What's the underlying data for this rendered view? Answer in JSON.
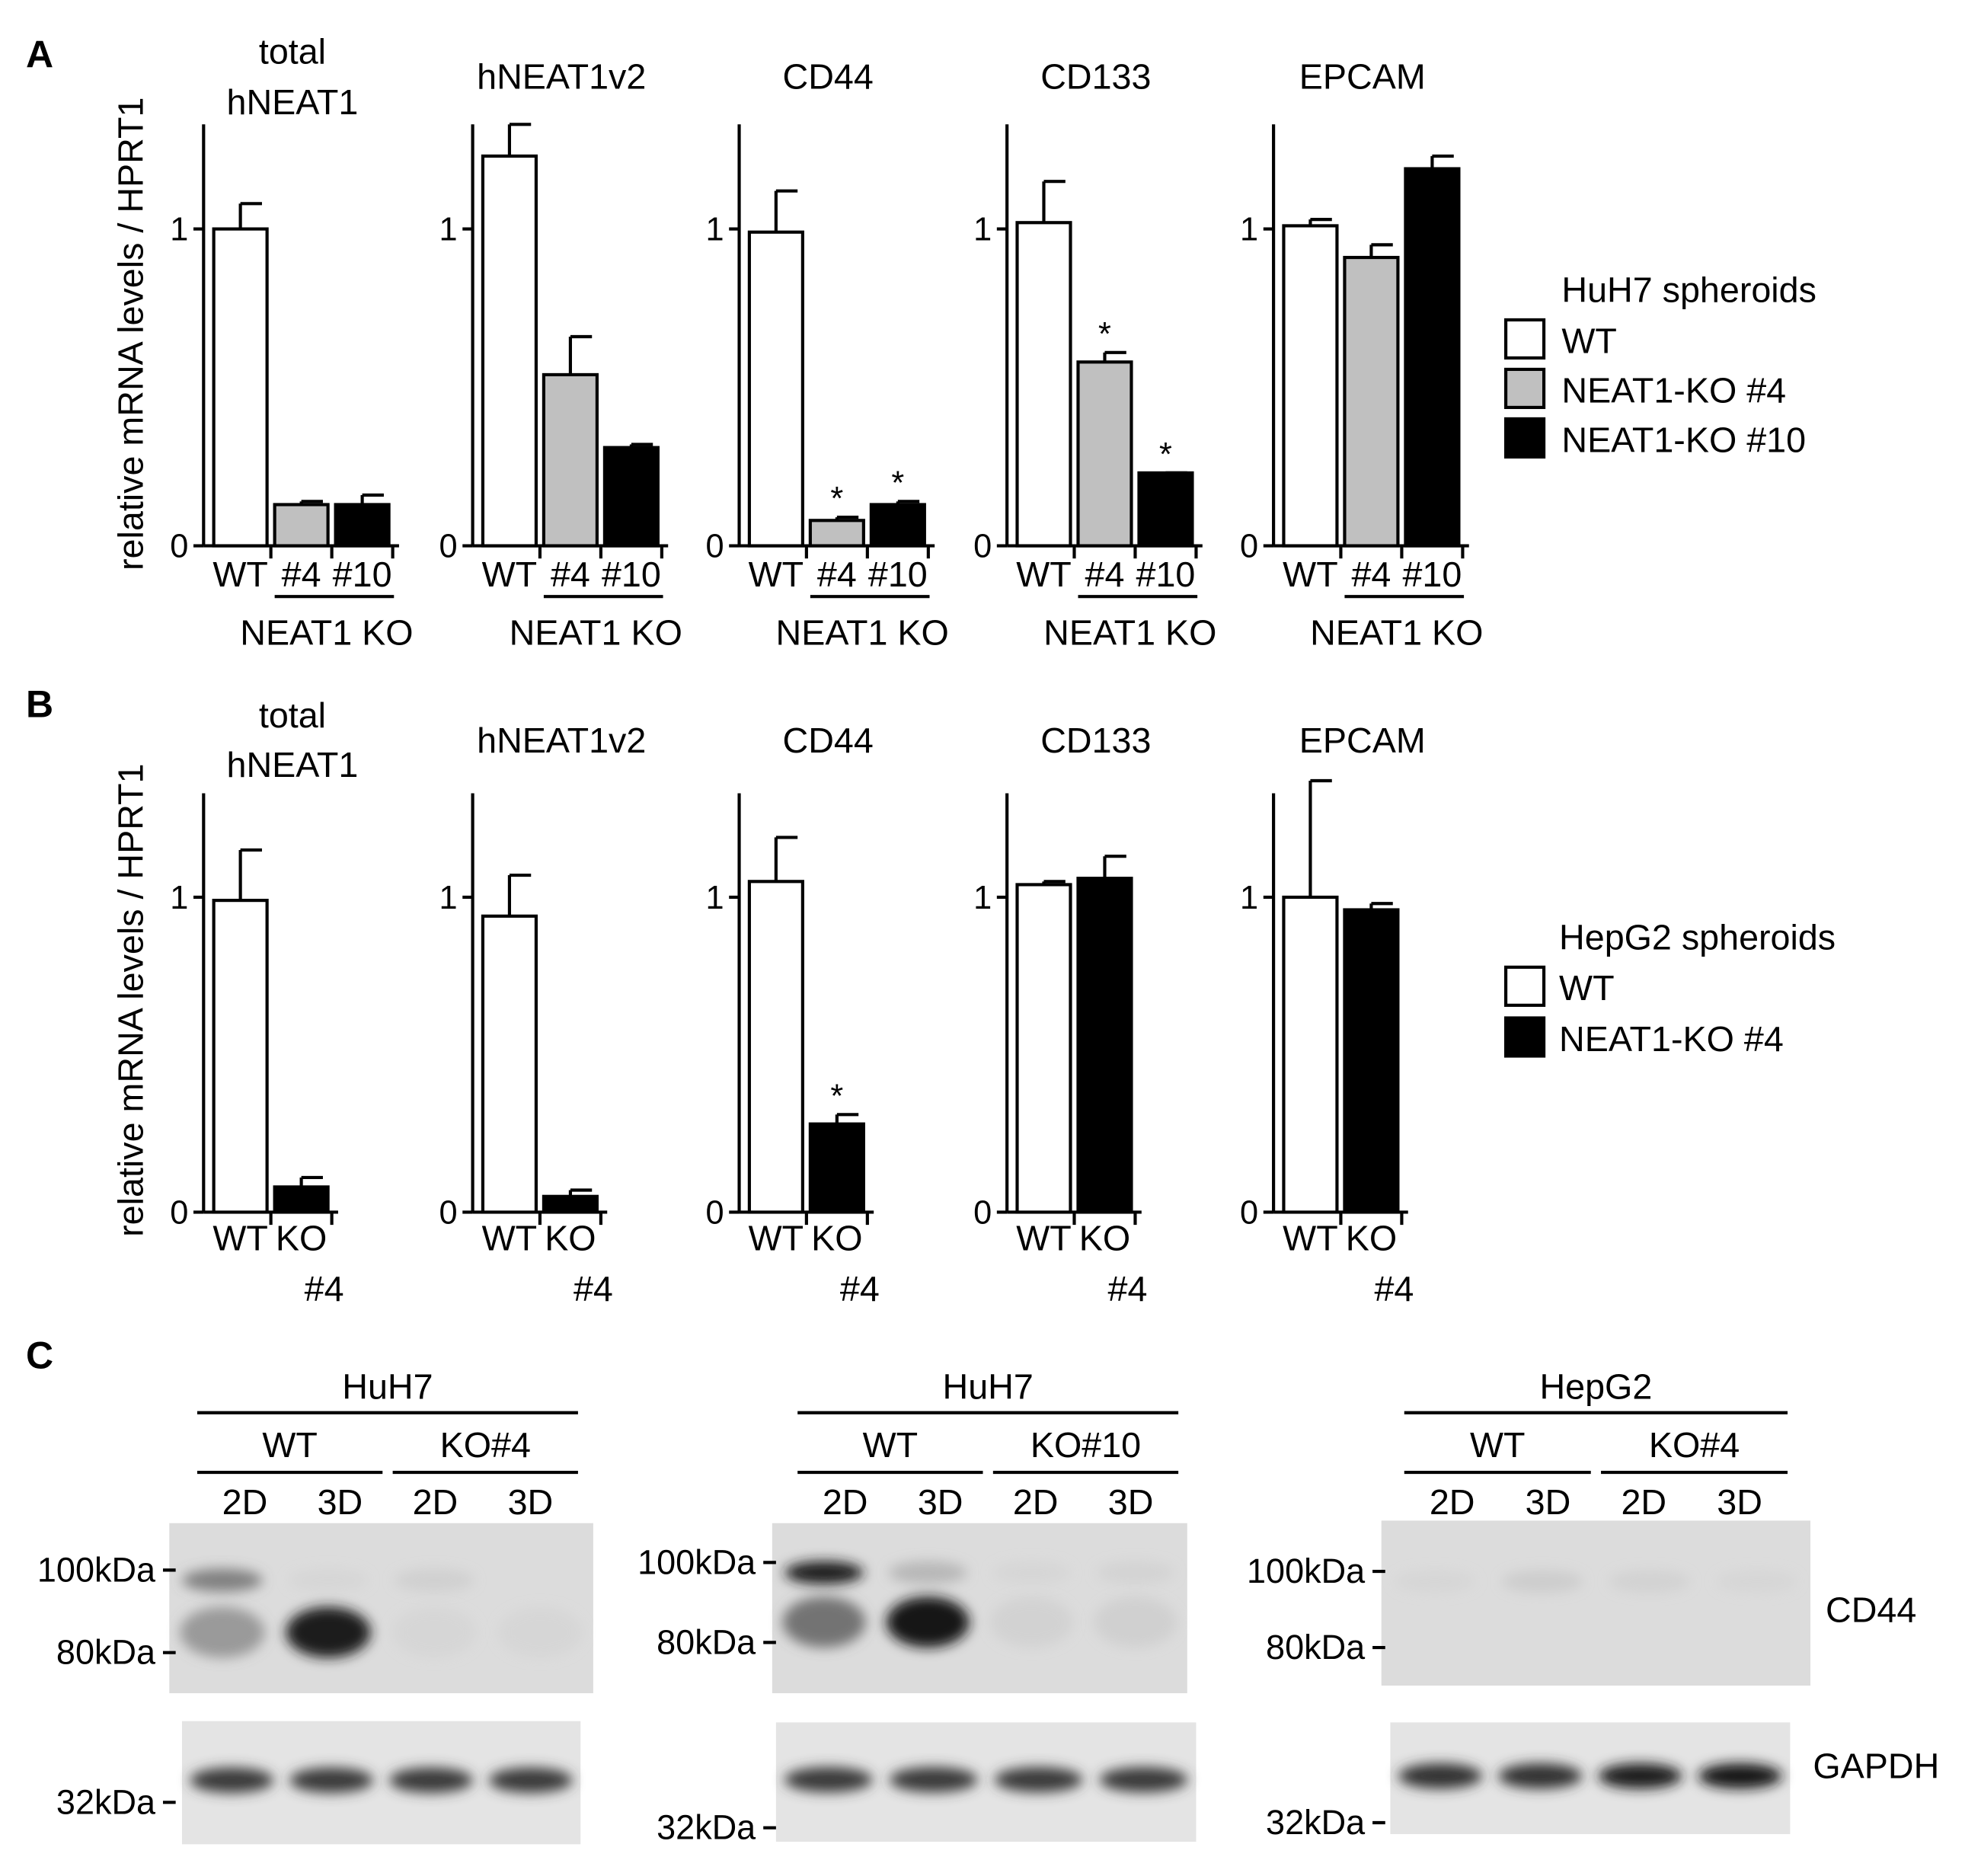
{
  "figure": {
    "panels": {
      "a": "A",
      "b": "B",
      "c": "C"
    },
    "y_axis_label": "relative mRNA levels / HPRT1",
    "group_label": "NEAT1 KO",
    "legend_a": {
      "title": "HuH7 spheroids",
      "items": [
        {
          "label": "WT",
          "color": "#ffffff"
        },
        {
          "label": "NEAT1-KO #4",
          "color": "#c0c0c0"
        },
        {
          "label": "NEAT1-KO #10",
          "color": "#000000"
        }
      ]
    },
    "legend_b": {
      "title": "HepG2 spheroids",
      "items": [
        {
          "label": "WT",
          "color": "#ffffff"
        },
        {
          "label": "NEAT1-KO #4",
          "color": "#000000"
        }
      ]
    }
  },
  "chart_data": [
    {
      "panel": "A",
      "type": "bar",
      "title": "total hNEAT1",
      "ylabel": "relative mRNA levels / HPRT1",
      "categories": [
        "WT",
        "#4",
        "#10"
      ],
      "group_label": "NEAT1 KO",
      "values": [
        1.0,
        0.13,
        0.13
      ],
      "errors": [
        0.08,
        0.01,
        0.03
      ],
      "significant": [
        false,
        false,
        false
      ],
      "colors": [
        "#ffffff",
        "#c0c0c0",
        "#000000"
      ],
      "ylim": [
        0,
        1.33
      ],
      "yticks": [
        0,
        1
      ]
    },
    {
      "panel": "A",
      "type": "bar",
      "title": "hNEAT1v2",
      "ylabel": "relative mRNA levels / HPRT1",
      "categories": [
        "WT",
        "#4",
        "#10"
      ],
      "group_label": "NEAT1 KO",
      "values": [
        1.23,
        0.54,
        0.31
      ],
      "errors": [
        0.1,
        0.12,
        0.01
      ],
      "significant": [
        false,
        false,
        false
      ],
      "colors": [
        "#ffffff",
        "#c0c0c0",
        "#000000"
      ],
      "ylim": [
        0,
        1.33
      ],
      "yticks": [
        0,
        1
      ]
    },
    {
      "panel": "A",
      "type": "bar",
      "title": "CD44",
      "ylabel": "relative mRNA levels / HPRT1",
      "categories": [
        "WT",
        "#4",
        "#10"
      ],
      "group_label": "NEAT1 KO",
      "values": [
        0.99,
        0.08,
        0.13
      ],
      "errors": [
        0.13,
        0.01,
        0.01
      ],
      "significant": [
        false,
        true,
        true
      ],
      "colors": [
        "#ffffff",
        "#c0c0c0",
        "#000000"
      ],
      "ylim": [
        0,
        1.33
      ],
      "yticks": [
        0,
        1
      ]
    },
    {
      "panel": "A",
      "type": "bar",
      "title": "CD133",
      "ylabel": "relative mRNA levels / HPRT1",
      "categories": [
        "WT",
        "#4",
        "#10"
      ],
      "group_label": "NEAT1 KO",
      "values": [
        1.02,
        0.58,
        0.23
      ],
      "errors": [
        0.13,
        0.03,
        0.0
      ],
      "significant": [
        false,
        true,
        true
      ],
      "colors": [
        "#ffffff",
        "#c0c0c0",
        "#000000"
      ],
      "ylim": [
        0,
        1.33
      ],
      "yticks": [
        0,
        1
      ]
    },
    {
      "panel": "A",
      "type": "bar",
      "title": "EPCAM",
      "ylabel": "relative mRNA levels / HPRT1",
      "categories": [
        "WT",
        "#4",
        "#10"
      ],
      "group_label": "NEAT1 KO",
      "values": [
        1.01,
        0.91,
        1.19
      ],
      "errors": [
        0.02,
        0.04,
        0.04
      ],
      "significant": [
        false,
        false,
        false
      ],
      "colors": [
        "#ffffff",
        "#c0c0c0",
        "#000000"
      ],
      "ylim": [
        0,
        1.33
      ],
      "yticks": [
        0,
        1
      ]
    },
    {
      "panel": "B",
      "type": "bar",
      "title": "total hNEAT1",
      "ylabel": "relative mRNA levels / HPRT1",
      "categories": [
        "WT",
        "KO #4"
      ],
      "values": [
        0.99,
        0.08
      ],
      "errors": [
        0.16,
        0.03
      ],
      "significant": [
        false,
        false
      ],
      "colors": [
        "#ffffff",
        "#000000"
      ],
      "ylim": [
        0,
        1.33
      ],
      "yticks": [
        0,
        1
      ]
    },
    {
      "panel": "B",
      "type": "bar",
      "title": "hNEAT1v2",
      "ylabel": "relative mRNA levels / HPRT1",
      "categories": [
        "WT",
        "KO #4"
      ],
      "values": [
        0.94,
        0.05
      ],
      "errors": [
        0.13,
        0.02
      ],
      "significant": [
        false,
        false
      ],
      "colors": [
        "#ffffff",
        "#000000"
      ],
      "ylim": [
        0,
        1.33
      ],
      "yticks": [
        0,
        1
      ]
    },
    {
      "panel": "B",
      "type": "bar",
      "title": "CD44",
      "ylabel": "relative mRNA levels / HPRT1",
      "categories": [
        "WT",
        "KO #4"
      ],
      "values": [
        1.05,
        0.28
      ],
      "errors": [
        0.14,
        0.03
      ],
      "significant": [
        false,
        true
      ],
      "colors": [
        "#ffffff",
        "#000000"
      ],
      "ylim": [
        0,
        1.33
      ],
      "yticks": [
        0,
        1
      ]
    },
    {
      "panel": "B",
      "type": "bar",
      "title": "CD133",
      "ylabel": "relative mRNA levels / HPRT1",
      "categories": [
        "WT",
        "KO #4"
      ],
      "values": [
        1.04,
        1.06
      ],
      "errors": [
        0.01,
        0.07
      ],
      "significant": [
        false,
        false
      ],
      "colors": [
        "#ffffff",
        "#000000"
      ],
      "ylim": [
        0,
        1.33
      ],
      "yticks": [
        0,
        1
      ]
    },
    {
      "panel": "B",
      "type": "bar",
      "title": "EPCAM",
      "ylabel": "relative mRNA levels / HPRT1",
      "categories": [
        "WT",
        "KO #4"
      ],
      "values": [
        1.0,
        0.96
      ],
      "errors": [
        0.37,
        0.02
      ],
      "significant": [
        false,
        false
      ],
      "colors": [
        "#ffffff",
        "#000000"
      ],
      "ylim": [
        0,
        1.33
      ],
      "yticks": [
        0,
        1
      ]
    }
  ],
  "blots": [
    {
      "cell": "HuH7",
      "groups": [
        "WT",
        "KO#4"
      ],
      "lanes": [
        "2D",
        "3D",
        "2D",
        "3D"
      ],
      "cd44_markers": [
        "100kDa",
        "80kDa"
      ],
      "gapdh_marker": "32kDa",
      "upper_band": [
        0.55,
        0.05,
        0.12,
        0.0
      ],
      "lower_band": [
        0.45,
        0.95,
        0.05,
        0.05
      ],
      "gapdh_band": [
        0.8,
        0.8,
        0.8,
        0.8
      ]
    },
    {
      "cell": "HuH7",
      "groups": [
        "WT",
        "KO#10"
      ],
      "lanes": [
        "2D",
        "3D",
        "2D",
        "3D"
      ],
      "cd44_markers": [
        "100kDa",
        "80kDa"
      ],
      "gapdh_marker": "32kDa",
      "upper_band": [
        0.95,
        0.3,
        0.06,
        0.08
      ],
      "lower_band": [
        0.6,
        1.0,
        0.1,
        0.12
      ],
      "gapdh_band": [
        0.8,
        0.8,
        0.8,
        0.8
      ]
    },
    {
      "cell": "HepG2",
      "groups": [
        "WT",
        "KO#4"
      ],
      "lanes": [
        "2D",
        "3D",
        "2D",
        "3D"
      ],
      "cd44_markers": [
        "100kDa",
        "80kDa"
      ],
      "gapdh_marker": "32kDa",
      "upper_band": [
        0.05,
        0.15,
        0.1,
        0.05
      ],
      "lower_band": [
        0.0,
        0.0,
        0.0,
        0.0
      ],
      "gapdh_band": [
        0.85,
        0.85,
        0.95,
        1.0
      ]
    }
  ],
  "blot_labels": {
    "cd44": "CD44",
    "gapdh": "GAPDH"
  }
}
